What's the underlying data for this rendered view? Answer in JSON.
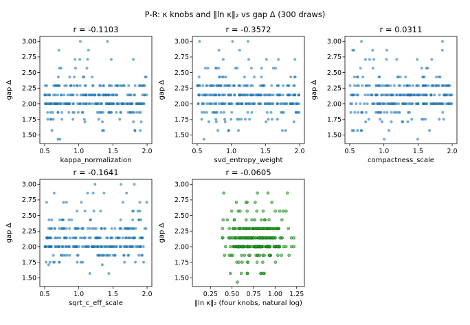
{
  "figure": {
    "suptitle": "P-R: κ knobs and ‖ln κ‖₂ vs gap Δ (300 draws)"
  },
  "chart_data": [
    {
      "type": "scatter",
      "title": "r = -0.1103",
      "xlabel": "kappa_normalization",
      "ylabel": "gap Δ",
      "xlim": [
        0.43,
        2.07
      ],
      "ylim": [
        1.36,
        3.08
      ],
      "xticks": [
        "0.5",
        "1.0",
        "1.5",
        "2.0"
      ],
      "yticks": [
        "1.50",
        "1.75",
        "2.00",
        "2.25",
        "2.50",
        "2.75",
        "3.00"
      ],
      "color": "#1f77b4",
      "n_points": 300,
      "x_range": [
        0.5,
        2.0
      ],
      "y_levels": [
        1.43,
        1.57,
        1.71,
        1.75,
        1.86,
        2.0,
        2.14,
        2.29,
        2.43,
        2.57,
        2.71,
        2.86,
        3.0
      ],
      "y_weights": [
        1,
        2,
        3,
        9,
        18,
        72,
        60,
        44,
        10,
        6,
        4,
        3,
        2
      ],
      "correlation": -0.1103,
      "seed": 11
    },
    {
      "type": "scatter",
      "title": "r = -0.3572",
      "xlabel": "svd_entropy_weight",
      "ylabel": "gap Δ",
      "xlim": [
        0.43,
        2.07
      ],
      "ylim": [
        1.36,
        3.08
      ],
      "xticks": [
        "0.5",
        "1.0",
        "1.5",
        "2.0"
      ],
      "yticks": [
        "1.50",
        "1.75",
        "2.00",
        "2.25",
        "2.50",
        "2.75",
        "3.00"
      ],
      "color": "#1f77b4",
      "n_points": 300,
      "x_range": [
        0.5,
        2.0
      ],
      "y_levels": [
        1.43,
        1.57,
        1.71,
        1.75,
        1.86,
        2.0,
        2.14,
        2.29,
        2.43,
        2.57,
        2.71,
        2.86,
        3.0
      ],
      "y_weights": [
        1,
        2,
        3,
        9,
        18,
        72,
        60,
        44,
        10,
        6,
        4,
        3,
        2
      ],
      "correlation": -0.3572,
      "seed": 23
    },
    {
      "type": "scatter",
      "title": "r = 0.0311",
      "xlabel": "compactness_scale",
      "ylabel": "gap Δ",
      "xlim": [
        0.43,
        2.07
      ],
      "ylim": [
        1.36,
        3.08
      ],
      "xticks": [
        "0.5",
        "1.0",
        "1.5",
        "2.0"
      ],
      "yticks": [
        "1.50",
        "1.75",
        "2.00",
        "2.25",
        "2.50",
        "2.75",
        "3.00"
      ],
      "color": "#1f77b4",
      "n_points": 300,
      "x_range": [
        0.5,
        2.0
      ],
      "y_levels": [
        1.43,
        1.57,
        1.71,
        1.75,
        1.86,
        2.0,
        2.14,
        2.29,
        2.43,
        2.57,
        2.71,
        2.86,
        3.0
      ],
      "y_weights": [
        1,
        2,
        3,
        9,
        18,
        72,
        60,
        44,
        10,
        6,
        4,
        3,
        2
      ],
      "correlation": 0.0311,
      "seed": 37
    },
    {
      "type": "scatter",
      "title": "r = -0.1641",
      "xlabel": "sqrt_c_eff_scale",
      "ylabel": "gap Δ",
      "xlim": [
        0.43,
        2.07
      ],
      "ylim": [
        1.36,
        3.08
      ],
      "xticks": [
        "0.5",
        "1.0",
        "1.5",
        "2.0"
      ],
      "yticks": [
        "1.50",
        "1.75",
        "2.00",
        "2.25",
        "2.50",
        "2.75",
        "3.00"
      ],
      "color": "#1f77b4",
      "n_points": 300,
      "x_range": [
        0.5,
        2.0
      ],
      "y_levels": [
        1.43,
        1.57,
        1.71,
        1.75,
        1.86,
        2.0,
        2.14,
        2.29,
        2.43,
        2.57,
        2.71,
        2.86,
        3.0
      ],
      "y_weights": [
        1,
        2,
        3,
        9,
        18,
        72,
        60,
        44,
        10,
        6,
        4,
        3,
        2
      ],
      "correlation": -0.1641,
      "seed": 53
    },
    {
      "type": "scatter",
      "title": "r = -0.0605",
      "xlabel": "‖ln κ‖₂ (four knobs, natural log)",
      "ylabel": "gap Δ",
      "xlim": [
        0.04,
        1.34
      ],
      "ylim": [
        1.36,
        3.08
      ],
      "xticks": [
        "0.25",
        "0.50",
        "0.75",
        "1.00",
        "1.25"
      ],
      "yticks": [
        "1.50",
        "1.75",
        "2.00",
        "2.25",
        "2.50",
        "2.75",
        "3.00"
      ],
      "color": "#2ca02c",
      "edge_color": "#006400",
      "n_points": 300,
      "x_range": [
        0.1,
        1.3
      ],
      "x_center": 0.8,
      "y_levels": [
        1.43,
        1.57,
        1.71,
        1.75,
        1.86,
        2.0,
        2.14,
        2.29,
        2.43,
        2.57,
        2.71,
        2.86,
        3.0
      ],
      "y_weights": [
        1,
        2,
        3,
        9,
        18,
        72,
        60,
        44,
        10,
        6,
        4,
        3,
        2
      ],
      "correlation": -0.0605,
      "seed": 71
    }
  ]
}
